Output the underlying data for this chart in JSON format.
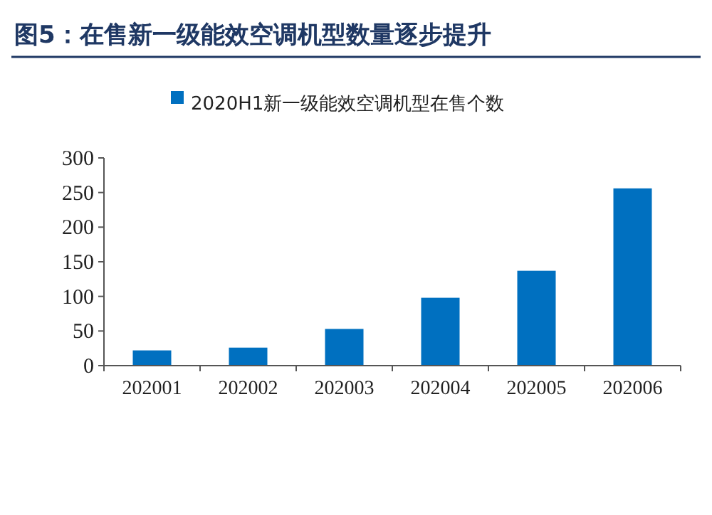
{
  "chart_data": {
    "type": "bar",
    "title": "图5：在售新一级能效空调机型数量逐步提升",
    "categories": [
      "202001",
      "202002",
      "202003",
      "202004",
      "202005",
      "202006"
    ],
    "series": [
      {
        "name": "2020H1新一级能效空调机型在售个数",
        "color": "#0070c0",
        "values": [
          22,
          26,
          53,
          98,
          137,
          256
        ]
      }
    ],
    "ylim": [
      0,
      300
    ],
    "yticks": [
      0,
      50,
      100,
      150,
      200,
      250,
      300
    ],
    "grid": false,
    "legend": "top"
  }
}
